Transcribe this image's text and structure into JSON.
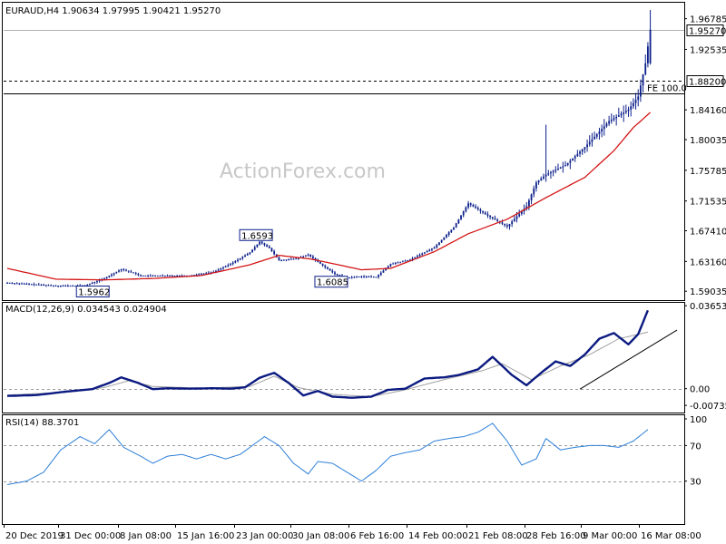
{
  "header": {
    "price_title": "EURAUD,H4  1.90634 1.97995 1.90421 1.95270",
    "macd_title": "MACD(12,26,9) 0.034543 0.024904",
    "rsi_title": "RSI(14) 88.3701"
  },
  "watermark": "ActionForex.com",
  "colors": {
    "candle": "#0b1f8a",
    "moving_average": "#d41414",
    "macd_line": "#0b1a80",
    "macd_signal": "#a0a0a0",
    "rsi_line": "#2d7fd8",
    "trendline": "#000000",
    "reference_line": "#000000"
  },
  "chart_data": [
    {
      "type": "candlestick",
      "title": "EURAUD,H4  1.90634 1.97995 1.90421 1.95270",
      "symbol": "EURAUD",
      "timeframe": "H4",
      "ohlc_last": {
        "open": 1.90634,
        "high": 1.97995,
        "low": 1.90421,
        "close": 1.9527
      },
      "x_ticks": [
        "20 Dec 2019",
        "31 Dec 00:00",
        "8 Jan 08:00",
        "15 Jan 16:00",
        "23 Jan 00:00",
        "30 Jan 08:00",
        "6 Feb 16:00",
        "14 Feb 00:00",
        "21 Feb 08:00",
        "28 Feb 16:00",
        "9 Mar 00:00",
        "16 Mar 08:00"
      ],
      "y_ticks": [
        1.59035,
        1.6316,
        1.6741,
        1.71535,
        1.75785,
        1.80035,
        1.8416,
        1.92535,
        1.96785
      ],
      "ylim": [
        1.578,
        1.99
      ],
      "grid": false,
      "price_path": [
        [
          0,
          1.602
        ],
        [
          20,
          1.598
        ],
        [
          32,
          1.598
        ],
        [
          40,
          1.608
        ],
        [
          47,
          1.621
        ],
        [
          55,
          1.612
        ],
        [
          65,
          1.612
        ],
        [
          75,
          1.612
        ],
        [
          85,
          1.617
        ],
        [
          92,
          1.628
        ],
        [
          100,
          1.644
        ],
        [
          104,
          1.659
        ],
        [
          108,
          1.65
        ],
        [
          112,
          1.633
        ],
        [
          120,
          1.636
        ],
        [
          124,
          1.641
        ],
        [
          130,
          1.626
        ],
        [
          135,
          1.614
        ],
        [
          140,
          1.609
        ],
        [
          146,
          1.611
        ],
        [
          152,
          1.61
        ],
        [
          158,
          1.628
        ],
        [
          166,
          1.634
        ],
        [
          176,
          1.651
        ],
        [
          184,
          1.679
        ],
        [
          190,
          1.712
        ],
        [
          198,
          1.695
        ],
        [
          206,
          1.68
        ],
        [
          214,
          1.708
        ],
        [
          218,
          1.741
        ],
        [
          222,
          1.752
        ],
        [
          230,
          1.765
        ],
        [
          238,
          1.79
        ],
        [
          248,
          1.826
        ],
        [
          256,
          1.842
        ],
        [
          260,
          1.86
        ],
        [
          263,
          1.906
        ],
        [
          265,
          1.953
        ]
      ],
      "spikes": [
        [
          222,
          1.821
        ],
        [
          265,
          1.98
        ]
      ],
      "annotations": [
        {
          "label": "1.5962",
          "value": 1.5962,
          "bar": 30
        },
        {
          "label": "1.6593",
          "value": 1.6593,
          "bar": 104
        },
        {
          "label": "1.6085",
          "value": 1.6085,
          "bar": 135
        }
      ],
      "moving_average": [
        [
          0,
          1.622
        ],
        [
          20,
          1.607
        ],
        [
          40,
          1.606
        ],
        [
          60,
          1.608
        ],
        [
          80,
          1.612
        ],
        [
          100,
          1.627
        ],
        [
          112,
          1.64
        ],
        [
          125,
          1.635
        ],
        [
          135,
          1.628
        ],
        [
          146,
          1.62
        ],
        [
          158,
          1.622
        ],
        [
          176,
          1.645
        ],
        [
          190,
          1.67
        ],
        [
          206,
          1.69
        ],
        [
          222,
          1.72
        ],
        [
          238,
          1.748
        ],
        [
          250,
          1.785
        ],
        [
          258,
          1.817
        ],
        [
          265,
          1.838
        ]
      ],
      "reference_lines": [
        {
          "value": 1.9527,
          "label": "1.95270",
          "style": "solid"
        },
        {
          "value": 1.882,
          "label": "1.88200",
          "style": "dashed"
        },
        {
          "value": 1.864,
          "label": "FE 100.0",
          "style": "solid"
        }
      ]
    },
    {
      "type": "line",
      "title": "MACD(12,26,9) 0.034543 0.024904",
      "y_ticks": [
        0.036538,
        0.0,
        -0.007352
      ],
      "ylim": [
        -0.0105,
        0.0378
      ],
      "zero_line_dashed": true,
      "series": [
        {
          "name": "",
          "values": [
            [
              0,
              -0.0032
            ],
            [
              12,
              -0.0028
            ],
            [
              25,
              -0.0012
            ],
            [
              35,
              -0.0002
            ],
            [
              42,
              0.0025
            ],
            [
              47,
              0.005
            ],
            [
              54,
              0.0025
            ],
            [
              60,
              -0.0002
            ],
            [
              66,
              0.0002
            ],
            [
              75,
              0.0
            ],
            [
              85,
              0.0002
            ],
            [
              92,
              0.0
            ],
            [
              98,
              0.0006
            ],
            [
              104,
              0.0048
            ],
            [
              110,
              0.007
            ],
            [
              116,
              0.0025
            ],
            [
              122,
              -0.003
            ],
            [
              128,
              -0.001
            ],
            [
              134,
              -0.0035
            ],
            [
              142,
              -0.004
            ],
            [
              150,
              -0.0035
            ],
            [
              157,
              -0.0005
            ],
            [
              164,
              0.0
            ],
            [
              172,
              0.0045
            ],
            [
              180,
              0.005
            ],
            [
              186,
              0.006
            ],
            [
              194,
              0.0085
            ],
            [
              200,
              0.014
            ],
            [
              208,
              0.006
            ],
            [
              214,
              0.0015
            ],
            [
              220,
              0.007
            ],
            [
              226,
              0.012
            ],
            [
              232,
              0.01
            ],
            [
              238,
              0.015
            ],
            [
              244,
              0.022
            ],
            [
              250,
              0.0245
            ],
            [
              256,
              0.0195
            ],
            [
              260,
              0.024
            ],
            [
              264,
              0.0345
            ]
          ]
        },
        {
          "name": "",
          "values": [
            [
              0,
              -0.0028
            ],
            [
              20,
              -0.0018
            ],
            [
              40,
              0.0005
            ],
            [
              50,
              0.0035
            ],
            [
              60,
              0.001
            ],
            [
              80,
              0.0002
            ],
            [
              100,
              0.001
            ],
            [
              110,
              0.0055
            ],
            [
              120,
              0.0005
            ],
            [
              134,
              -0.0025
            ],
            [
              150,
              -0.0035
            ],
            [
              164,
              -0.0005
            ],
            [
              180,
              0.004
            ],
            [
              196,
              0.008
            ],
            [
              204,
              0.011
            ],
            [
              216,
              0.004
            ],
            [
              228,
              0.01
            ],
            [
              240,
              0.015
            ],
            [
              252,
              0.022
            ],
            [
              264,
              0.0249
            ]
          ]
        }
      ],
      "trendline": [
        [
          236,
          -0.0002
        ],
        [
          276,
          0.0258
        ]
      ]
    },
    {
      "type": "line",
      "title": "RSI(14) 88.3701",
      "y_ticks": [
        100,
        70,
        30
      ],
      "ylim": [
        0,
        100
      ],
      "levels": [
        70,
        30
      ],
      "series": [
        {
          "name": "",
          "values": [
            [
              0,
              26
            ],
            [
              8,
              30
            ],
            [
              15,
              40
            ],
            [
              22,
              65
            ],
            [
              30,
              80
            ],
            [
              36,
              72
            ],
            [
              42,
              88
            ],
            [
              48,
              68
            ],
            [
              55,
              58
            ],
            [
              60,
              50
            ],
            [
              66,
              58
            ],
            [
              72,
              60
            ],
            [
              78,
              55
            ],
            [
              84,
              60
            ],
            [
              90,
              55
            ],
            [
              96,
              60
            ],
            [
              100,
              68
            ],
            [
              106,
              80
            ],
            [
              112,
              70
            ],
            [
              118,
              50
            ],
            [
              124,
              38
            ],
            [
              128,
              52
            ],
            [
              134,
              50
            ],
            [
              140,
              40
            ],
            [
              146,
              30
            ],
            [
              152,
              42
            ],
            [
              158,
              58
            ],
            [
              164,
              62
            ],
            [
              170,
              65
            ],
            [
              176,
              75
            ],
            [
              182,
              78
            ],
            [
              188,
              80
            ],
            [
              194,
              85
            ],
            [
              200,
              95
            ],
            [
              206,
              75
            ],
            [
              212,
              48
            ],
            [
              218,
              55
            ],
            [
              222,
              78
            ],
            [
              228,
              65
            ],
            [
              234,
              68
            ],
            [
              240,
              70
            ],
            [
              246,
              70
            ],
            [
              252,
              68
            ],
            [
              258,
              75
            ],
            [
              264,
              88
            ]
          ]
        }
      ]
    }
  ]
}
